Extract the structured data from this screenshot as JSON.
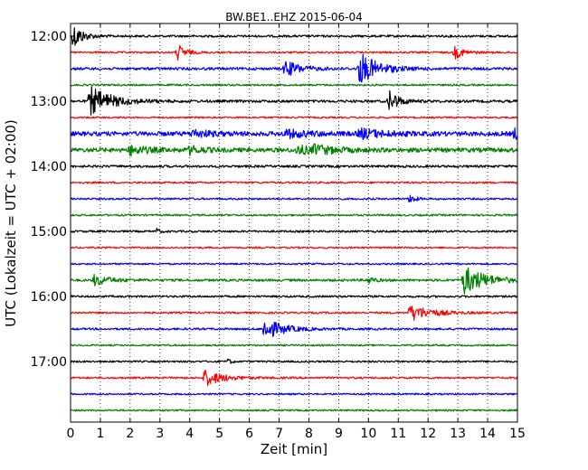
{
  "chart_data": {
    "type": "line",
    "title": "BW.BE1..EHZ 2015-06-04",
    "xlabel": "Zeit  [min]",
    "ylabel": "UTC (Lokalzeit = UTC + 02:00)",
    "xlim": [
      0,
      15
    ],
    "x_ticks": [
      0,
      1,
      2,
      3,
      4,
      5,
      6,
      7,
      8,
      9,
      10,
      11,
      12,
      13,
      14,
      15
    ],
    "x_tick_labels": [
      "0",
      "1",
      "2",
      "3",
      "4",
      "5",
      "6",
      "7",
      "8",
      "9",
      "10",
      "11",
      "12",
      "13",
      "14",
      "15"
    ],
    "y_tick_labels": [
      "12:00",
      "13:00",
      "14:00",
      "15:00",
      "16:00",
      "17:00"
    ],
    "trace_interval_minutes": 15,
    "grid": "vertical dotted",
    "color_cycle": [
      "#000000",
      "#ff0000",
      "#0000ff",
      "#008000"
    ],
    "traces": [
      {
        "start": "12:00",
        "color": "#000000",
        "noise": 1.2,
        "events": [
          {
            "t": 0.1,
            "amp": 14,
            "dur": 0.3
          }
        ]
      },
      {
        "start": "12:15",
        "color": "#ff0000",
        "noise": 1.0,
        "events": [
          {
            "t": 3.6,
            "amp": 9,
            "dur": 0.25
          },
          {
            "t": 12.9,
            "amp": 7,
            "dur": 0.3
          }
        ]
      },
      {
        "start": "12:30",
        "color": "#0000ff",
        "noise": 1.4,
        "events": [
          {
            "t": 7.2,
            "amp": 9,
            "dur": 0.5
          },
          {
            "t": 9.7,
            "amp": 18,
            "dur": 0.6
          }
        ]
      },
      {
        "start": "12:45",
        "color": "#008000",
        "noise": 1.0,
        "events": []
      },
      {
        "start": "13:00",
        "color": "#000000",
        "noise": 1.4,
        "events": [
          {
            "t": 0.65,
            "amp": 16,
            "dur": 0.7
          },
          {
            "t": 10.7,
            "amp": 12,
            "dur": 0.3
          }
        ]
      },
      {
        "start": "13:15",
        "color": "#ff0000",
        "noise": 0.9,
        "events": []
      },
      {
        "start": "13:30",
        "color": "#0000ff",
        "noise": 2.4,
        "events": [
          {
            "t": 4.1,
            "amp": 4,
            "dur": 0.6
          },
          {
            "t": 7.2,
            "amp": 4,
            "dur": 0.8
          },
          {
            "t": 9.7,
            "amp": 5,
            "dur": 0.8
          },
          {
            "t": 14.9,
            "amp": 5,
            "dur": 0.3
          }
        ]
      },
      {
        "start": "13:45",
        "color": "#008000",
        "noise": 2.4,
        "events": [
          {
            "t": 2.0,
            "amp": 5,
            "dur": 0.5
          },
          {
            "t": 4.0,
            "amp": 4,
            "dur": 0.4
          },
          {
            "t": 7.6,
            "amp": 4,
            "dur": 0.8
          },
          {
            "t": 8.2,
            "amp": 4,
            "dur": 0.5
          }
        ]
      },
      {
        "start": "14:00",
        "color": "#000000",
        "noise": 1.3,
        "events": []
      },
      {
        "start": "14:15",
        "color": "#ff0000",
        "noise": 1.0,
        "events": []
      },
      {
        "start": "14:30",
        "color": "#0000ff",
        "noise": 1.0,
        "events": [
          {
            "t": 11.4,
            "amp": 6,
            "dur": 0.15
          }
        ]
      },
      {
        "start": "14:45",
        "color": "#008000",
        "noise": 1.0,
        "events": []
      },
      {
        "start": "15:00",
        "color": "#000000",
        "noise": 1.1,
        "events": [
          {
            "t": 2.9,
            "amp": 3,
            "dur": 0.1
          }
        ]
      },
      {
        "start": "15:15",
        "color": "#ff0000",
        "noise": 0.9,
        "events": []
      },
      {
        "start": "15:30",
        "color": "#0000ff",
        "noise": 0.9,
        "events": []
      },
      {
        "start": "15:45",
        "color": "#008000",
        "noise": 1.3,
        "events": [
          {
            "t": 0.8,
            "amp": 6,
            "dur": 0.5
          },
          {
            "t": 10.0,
            "amp": 4,
            "dur": 0.2
          },
          {
            "t": 13.2,
            "amp": 16,
            "dur": 0.7
          }
        ]
      },
      {
        "start": "16:00",
        "color": "#000000",
        "noise": 1.1,
        "events": []
      },
      {
        "start": "16:15",
        "color": "#ff0000",
        "noise": 1.0,
        "events": [
          {
            "t": 11.4,
            "amp": 9,
            "dur": 0.7
          }
        ]
      },
      {
        "start": "16:30",
        "color": "#0000ff",
        "noise": 1.1,
        "events": [
          {
            "t": 6.5,
            "amp": 12,
            "dur": 0.6
          }
        ]
      },
      {
        "start": "16:45",
        "color": "#008000",
        "noise": 0.9,
        "events": []
      },
      {
        "start": "17:00",
        "color": "#000000",
        "noise": 1.0,
        "events": [
          {
            "t": 5.3,
            "amp": 3,
            "dur": 0.1
          }
        ]
      },
      {
        "start": "17:15",
        "color": "#ff0000",
        "noise": 1.0,
        "events": [
          {
            "t": 4.5,
            "amp": 9,
            "dur": 0.6
          }
        ]
      },
      {
        "start": "17:30",
        "color": "#0000ff",
        "noise": 0.9,
        "events": []
      },
      {
        "start": "17:45",
        "color": "#008000",
        "noise": 0.9,
        "events": []
      }
    ]
  }
}
